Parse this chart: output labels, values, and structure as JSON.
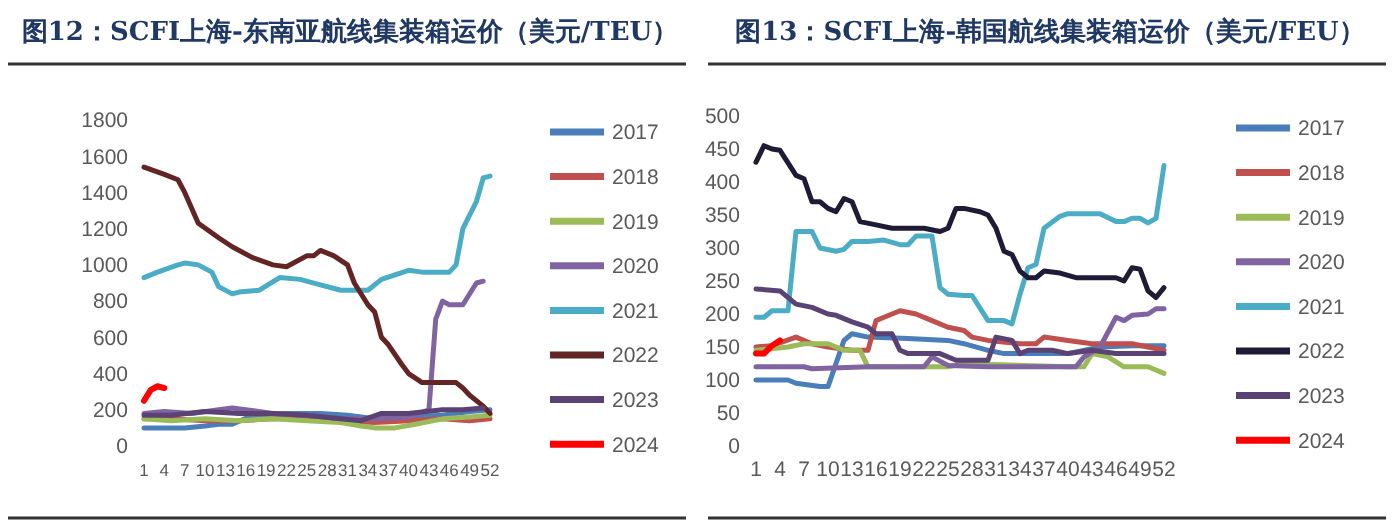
{
  "chart_data": [
    {
      "type": "line",
      "title": "图12：SCFI上海-东南亚航线集装箱运价（美元/TEU）",
      "xlim": [
        1,
        52
      ],
      "xticks": [
        1,
        4,
        7,
        10,
        13,
        16,
        19,
        22,
        25,
        28,
        31,
        34,
        37,
        40,
        43,
        46,
        49,
        52
      ],
      "ylim": [
        0,
        1800
      ],
      "yticks": [
        0,
        200,
        400,
        600,
        800,
        1000,
        1200,
        1400,
        1600,
        1800
      ],
      "legend": "right",
      "grid": false,
      "series": [
        {
          "name": "2017",
          "color": "#4a7ebb",
          "x": [
            1,
            4,
            7,
            10,
            12,
            14,
            17,
            22,
            27,
            31,
            35,
            40,
            45,
            49,
            52
          ],
          "values": [
            100,
            100,
            100,
            110,
            120,
            120,
            170,
            180,
            180,
            170,
            150,
            160,
            170,
            190,
            200
          ]
        },
        {
          "name": "2018",
          "color": "#c0504d",
          "x": [
            1,
            5,
            10,
            15,
            20,
            25,
            30,
            35,
            40,
            45,
            49,
            52
          ],
          "values": [
            150,
            150,
            140,
            140,
            150,
            150,
            140,
            130,
            140,
            150,
            140,
            150
          ]
        },
        {
          "name": "2019",
          "color": "#9bbb59",
          "x": [
            1,
            5,
            10,
            15,
            20,
            25,
            30,
            33,
            35,
            38,
            41,
            45,
            49,
            52
          ],
          "values": [
            150,
            140,
            150,
            140,
            150,
            140,
            130,
            110,
            100,
            100,
            120,
            150,
            160,
            170
          ]
        },
        {
          "name": "2020",
          "color": "#8064a2",
          "x": [
            1,
            4,
            8,
            12,
            14,
            16,
            20,
            25,
            30,
            35,
            40,
            43,
            44,
            45,
            46,
            48,
            50,
            51
          ],
          "values": [
            180,
            190,
            180,
            200,
            210,
            200,
            180,
            170,
            150,
            150,
            160,
            200,
            700,
            800,
            780,
            780,
            900,
            910
          ]
        },
        {
          "name": "2021",
          "color": "#4bacc6",
          "x": [
            1,
            3,
            6,
            7,
            9,
            11,
            12,
            14,
            15,
            18,
            21,
            24,
            27,
            30,
            34,
            36,
            40,
            42,
            46,
            47,
            48,
            50,
            51,
            52
          ],
          "values": [
            930,
            960,
            1000,
            1010,
            1000,
            960,
            880,
            840,
            850,
            860,
            930,
            920,
            890,
            860,
            860,
            920,
            970,
            960,
            960,
            1000,
            1200,
            1350,
            1480,
            1490
          ]
        },
        {
          "name": "2022",
          "color": "#632523",
          "x": [
            1,
            4,
            6,
            7,
            9,
            12,
            14,
            17,
            20,
            22,
            25,
            26,
            27,
            29,
            31,
            32,
            34,
            35,
            36,
            37,
            39,
            40,
            42,
            45,
            47,
            48,
            49,
            51,
            52
          ],
          "values": [
            1540,
            1500,
            1470,
            1400,
            1230,
            1150,
            1100,
            1040,
            1000,
            990,
            1050,
            1050,
            1080,
            1050,
            1000,
            900,
            780,
            740,
            600,
            560,
            450,
            400,
            350,
            350,
            350,
            320,
            280,
            220,
            180
          ]
        },
        {
          "name": "2023",
          "color": "#5a4374",
          "x": [
            1,
            5,
            10,
            15,
            20,
            25,
            30,
            33,
            36,
            40,
            45,
            48,
            51
          ],
          "values": [
            170,
            170,
            190,
            180,
            180,
            170,
            150,
            140,
            180,
            180,
            200,
            200,
            210
          ]
        },
        {
          "name": "2024",
          "color": "#ff0000",
          "x": [
            1,
            2,
            3,
            4
          ],
          "values": [
            250,
            310,
            330,
            320
          ]
        }
      ]
    },
    {
      "type": "line",
      "title": "图13：SCFI上海-韩国航线集装箱运价（美元/FEU）",
      "xlim": [
        1,
        52
      ],
      "xticks": [
        1,
        4,
        7,
        10,
        13,
        16,
        19,
        22,
        25,
        28,
        31,
        34,
        37,
        40,
        43,
        46,
        49,
        52
      ],
      "ylim": [
        0,
        500
      ],
      "yticks": [
        0,
        50,
        100,
        150,
        200,
        250,
        300,
        350,
        400,
        450,
        500
      ],
      "legend": "right",
      "grid": false,
      "series": [
        {
          "name": "2017",
          "color": "#4a7ebb",
          "x": [
            1,
            5,
            6,
            9,
            10,
            12,
            13,
            15,
            20,
            25,
            27,
            30,
            32,
            38,
            40,
            44,
            48,
            52
          ],
          "values": [
            100,
            100,
            95,
            90,
            90,
            160,
            170,
            165,
            163,
            160,
            155,
            145,
            140,
            140,
            140,
            150,
            152,
            152
          ]
        },
        {
          "name": "2018",
          "color": "#c0504d",
          "x": [
            1,
            3,
            6,
            8,
            10,
            13,
            15,
            16,
            17,
            19,
            21,
            23,
            25,
            27,
            28,
            30,
            34,
            36,
            37,
            40,
            43,
            46,
            48,
            50,
            52
          ],
          "values": [
            150,
            152,
            165,
            155,
            150,
            145,
            145,
            190,
            195,
            205,
            200,
            190,
            180,
            175,
            165,
            160,
            155,
            155,
            165,
            160,
            155,
            155,
            155,
            150,
            145
          ]
        },
        {
          "name": "2019",
          "color": "#9bbb59",
          "x": [
            1,
            5,
            7,
            10,
            12,
            14,
            15,
            25,
            27,
            40,
            42,
            43,
            45,
            47,
            50,
            52
          ],
          "values": [
            145,
            150,
            155,
            155,
            145,
            145,
            120,
            120,
            125,
            120,
            120,
            140,
            135,
            120,
            120,
            110
          ]
        },
        {
          "name": "2020",
          "color": "#8064a2",
          "x": [
            1,
            7,
            8,
            15,
            22,
            23,
            25,
            30,
            37,
            41,
            42,
            44,
            46,
            47,
            48,
            50,
            51,
            52
          ],
          "values": [
            120,
            120,
            117,
            120,
            120,
            135,
            122,
            120,
            120,
            120,
            135,
            150,
            195,
            190,
            198,
            200,
            208,
            208
          ]
        },
        {
          "name": "2021",
          "color": "#4bacc6",
          "x": [
            1,
            2,
            3,
            5,
            6,
            8,
            9,
            11,
            12,
            13,
            15,
            17,
            19,
            20,
            21,
            23,
            24,
            25,
            27,
            28,
            30,
            32,
            33,
            34,
            35,
            36,
            37,
            39,
            40,
            44,
            46,
            47,
            48,
            49,
            50,
            51,
            52
          ],
          "values": [
            195,
            195,
            205,
            205,
            325,
            325,
            300,
            295,
            298,
            310,
            310,
            312,
            305,
            305,
            318,
            318,
            240,
            230,
            228,
            228,
            190,
            190,
            185,
            230,
            270,
            275,
            330,
            348,
            352,
            352,
            340,
            340,
            345,
            345,
            338,
            345,
            425
          ]
        },
        {
          "name": "2022",
          "color": "#1f1a36",
          "x": [
            1,
            2,
            3,
            4,
            6,
            7,
            8,
            9,
            10,
            11,
            12,
            13,
            14,
            16,
            18,
            20,
            22,
            24,
            25,
            26,
            27,
            29,
            30,
            31,
            32,
            33,
            34,
            35,
            36,
            37,
            39,
            41,
            44,
            46,
            47,
            48,
            49,
            50,
            51,
            52
          ],
          "values": [
            430,
            455,
            450,
            448,
            410,
            405,
            370,
            370,
            360,
            355,
            375,
            370,
            340,
            335,
            330,
            330,
            330,
            325,
            330,
            360,
            360,
            355,
            350,
            330,
            295,
            290,
            265,
            255,
            255,
            265,
            262,
            255,
            255,
            255,
            250,
            270,
            268,
            235,
            225,
            240
          ]
        },
        {
          "name": "2023",
          "color": "#5a4374",
          "x": [
            1,
            4,
            6,
            8,
            10,
            11,
            13,
            15,
            16,
            18,
            19,
            20,
            22,
            24,
            26,
            28,
            30,
            31,
            33,
            34,
            35,
            38,
            40,
            43,
            46,
            52
          ],
          "values": [
            238,
            235,
            215,
            210,
            200,
            198,
            188,
            180,
            170,
            170,
            145,
            140,
            140,
            140,
            130,
            130,
            130,
            165,
            160,
            140,
            145,
            145,
            140,
            145,
            140,
            140
          ]
        },
        {
          "name": "2024",
          "color": "#ff0000",
          "x": [
            1,
            2,
            3,
            4
          ],
          "values": [
            140,
            140,
            152,
            160
          ]
        }
      ]
    }
  ]
}
